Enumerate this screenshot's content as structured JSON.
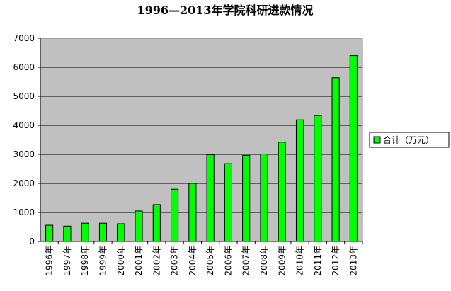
{
  "chart_data": {
    "type": "bar",
    "title": "1996—2013年学院科研进款情况",
    "xlabel": "",
    "ylabel": "",
    "categories": [
      "1996年",
      "1997年",
      "1998年",
      "1999年",
      "2000年",
      "2001年",
      "2002年",
      "2003年",
      "2004年",
      "2005年",
      "2006年",
      "2007年",
      "2008年",
      "2009年",
      "2010年",
      "2011年",
      "2012年",
      "2013年"
    ],
    "series": [
      {
        "name": "合计（万元）",
        "values": [
          560,
          530,
          630,
          630,
          610,
          1050,
          1270,
          1800,
          2000,
          2990,
          2680,
          2960,
          3010,
          3420,
          4190,
          4340,
          5640,
          6400
        ]
      }
    ],
    "ylim": [
      0,
      7000
    ],
    "yticks": [
      "0",
      "1000",
      "2000",
      "3000",
      "4000",
      "5000",
      "6000",
      "7000"
    ],
    "grid": true,
    "legend_position": "right",
    "colors": {
      "bar_fill": "#00ff00",
      "bar_stroke": "#000000",
      "plot_bg": "#c0c0c0",
      "grid": "#000000"
    }
  }
}
